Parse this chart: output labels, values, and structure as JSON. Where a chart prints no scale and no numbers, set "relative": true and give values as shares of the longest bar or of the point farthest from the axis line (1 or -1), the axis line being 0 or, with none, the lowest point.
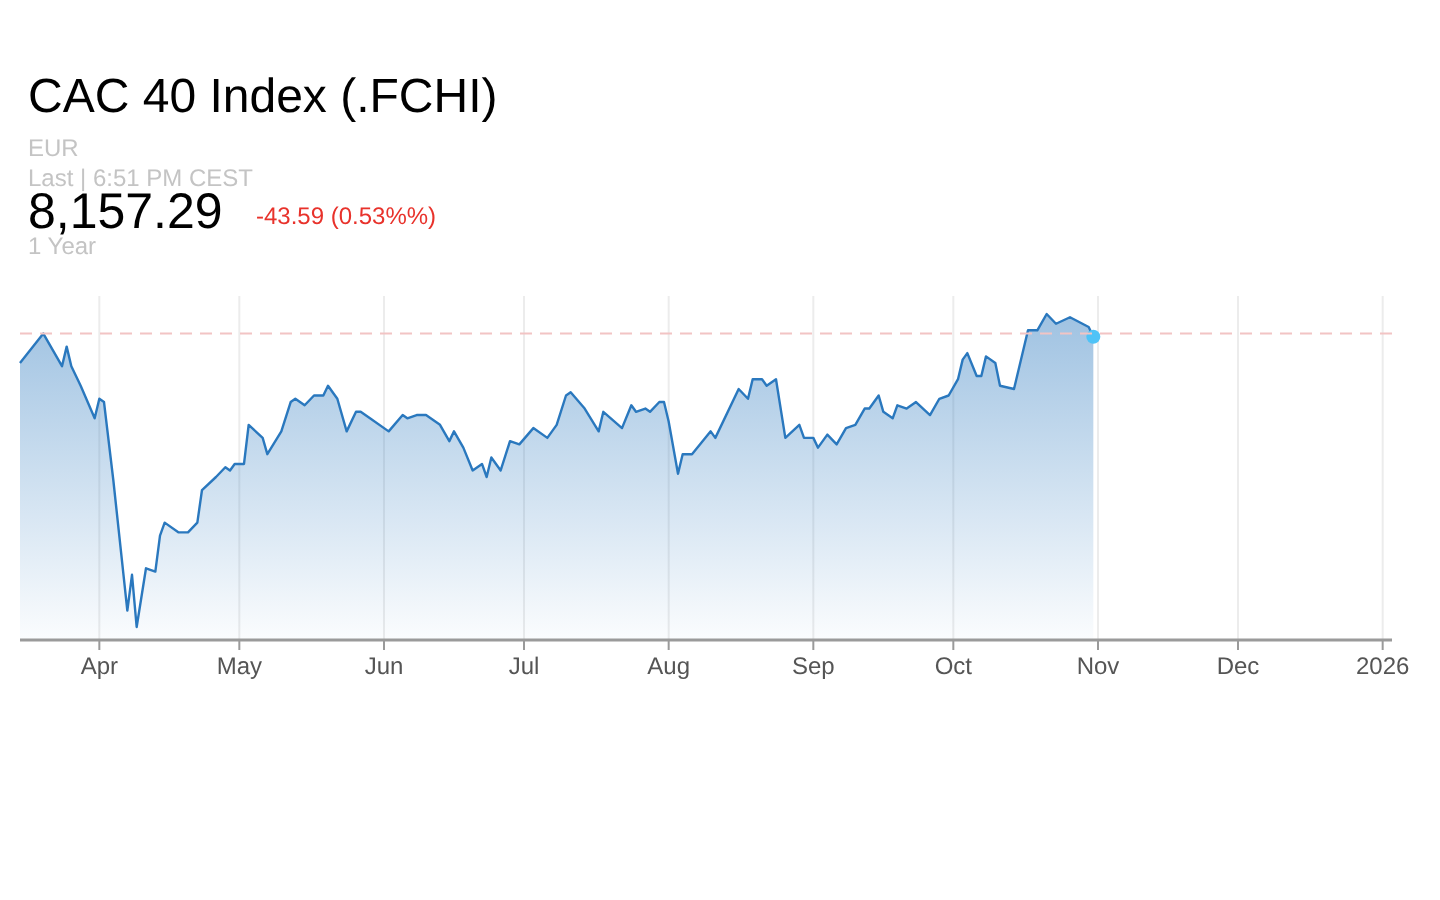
{
  "chart_data": {
    "type": "area",
    "title": "CAC 40 Index (.FCHI)",
    "annotations": [
      "EUR",
      "Last | 6:51 PM CEST",
      "8,157.29",
      "-43.59 (0.53%%)",
      "1 Year"
    ],
    "relative": true,
    "grid": "x",
    "xlim": [
      "2025-03-15",
      "2026-01-03"
    ],
    "xticks": [
      {
        "value": "2025-04-01",
        "label": "Apr"
      },
      {
        "value": "2025-05-01",
        "label": "May"
      },
      {
        "value": "2025-06-01",
        "label": "Jun"
      },
      {
        "value": "2025-07-01",
        "label": "Jul"
      },
      {
        "value": "2025-08-01",
        "label": "Aug"
      },
      {
        "value": "2025-09-01",
        "label": "Sep"
      },
      {
        "value": "2025-10-01",
        "label": "Oct"
      },
      {
        "value": "2025-11-01",
        "label": "Nov"
      },
      {
        "value": "2025-12-01",
        "label": "Dec"
      },
      {
        "value": "2026-01-01",
        "label": "2026"
      }
    ],
    "ref_lines": [
      {
        "axis": "y",
        "value": 0.94,
        "label": null,
        "color": "#f2c4c4",
        "line_style": "dashed"
      }
    ],
    "series": [
      {
        "color": "#2a78be",
        "x": [
          "2025-03-15",
          "2025-03-20",
          "2025-03-22",
          "2025-03-24",
          "2025-03-25",
          "2025-03-26",
          "2025-03-28",
          "2025-03-31",
          "2025-04-01",
          "2025-04-02",
          "2025-04-04",
          "2025-04-07",
          "2025-04-08",
          "2025-04-09",
          "2025-04-11",
          "2025-04-13",
          "2025-04-14",
          "2025-04-15",
          "2025-04-18",
          "2025-04-20",
          "2025-04-22",
          "2025-04-23",
          "2025-04-26",
          "2025-04-28",
          "2025-04-29",
          "2025-04-30",
          "2025-05-02",
          "2025-05-03",
          "2025-05-06",
          "2025-05-07",
          "2025-05-10",
          "2025-05-12",
          "2025-05-13",
          "2025-05-15",
          "2025-05-17",
          "2025-05-19",
          "2025-05-20",
          "2025-05-22",
          "2025-05-24",
          "2025-05-26",
          "2025-05-27",
          "2025-05-29",
          "2025-06-02",
          "2025-06-05",
          "2025-06-06",
          "2025-06-08",
          "2025-06-10",
          "2025-06-13",
          "2025-06-15",
          "2025-06-16",
          "2025-06-18",
          "2025-06-20",
          "2025-06-22",
          "2025-06-23",
          "2025-06-24",
          "2025-06-26",
          "2025-06-28",
          "2025-06-30",
          "2025-07-03",
          "2025-07-06",
          "2025-07-08",
          "2025-07-10",
          "2025-07-11",
          "2025-07-14",
          "2025-07-17",
          "2025-07-18",
          "2025-07-22",
          "2025-07-24",
          "2025-07-25",
          "2025-07-27",
          "2025-07-28",
          "2025-07-30",
          "2025-07-31",
          "2025-08-01",
          "2025-08-03",
          "2025-08-04",
          "2025-08-06",
          "2025-08-10",
          "2025-08-11",
          "2025-08-16",
          "2025-08-18",
          "2025-08-19",
          "2025-08-21",
          "2025-08-22",
          "2025-08-24",
          "2025-08-26",
          "2025-08-29",
          "2025-08-30",
          "2025-09-01",
          "2025-09-02",
          "2025-09-04",
          "2025-09-06",
          "2025-09-08",
          "2025-09-10",
          "2025-09-12",
          "2025-09-13",
          "2025-09-15",
          "2025-09-16",
          "2025-09-18",
          "2025-09-19",
          "2025-09-21",
          "2025-09-23",
          "2025-09-26",
          "2025-09-28",
          "2025-09-30",
          "2025-10-02",
          "2025-10-03",
          "2025-10-04",
          "2025-10-06",
          "2025-10-07",
          "2025-10-08",
          "2025-10-10",
          "2025-10-11",
          "2025-10-14",
          "2025-10-17",
          "2025-10-19",
          "2025-10-21",
          "2025-10-23",
          "2025-10-26",
          "2025-10-30",
          "2025-10-31"
        ],
        "values": [
          0.85,
          0.94,
          0.89,
          0.84,
          0.9,
          0.84,
          0.78,
          0.68,
          0.74,
          0.73,
          0.49,
          0.09,
          0.2,
          0.04,
          0.22,
          0.21,
          0.32,
          0.36,
          0.33,
          0.33,
          0.36,
          0.46,
          0.5,
          0.53,
          0.52,
          0.54,
          0.54,
          0.66,
          0.62,
          0.57,
          0.64,
          0.73,
          0.74,
          0.72,
          0.75,
          0.75,
          0.78,
          0.74,
          0.64,
          0.7,
          0.7,
          0.68,
          0.64,
          0.69,
          0.68,
          0.69,
          0.69,
          0.66,
          0.61,
          0.64,
          0.59,
          0.52,
          0.54,
          0.5,
          0.56,
          0.52,
          0.61,
          0.6,
          0.65,
          0.62,
          0.66,
          0.75,
          0.76,
          0.71,
          0.64,
          0.7,
          0.65,
          0.72,
          0.7,
          0.71,
          0.7,
          0.73,
          0.73,
          0.67,
          0.51,
          0.57,
          0.57,
          0.64,
          0.62,
          0.77,
          0.74,
          0.8,
          0.8,
          0.78,
          0.8,
          0.62,
          0.66,
          0.62,
          0.62,
          0.59,
          0.63,
          0.6,
          0.65,
          0.66,
          0.71,
          0.71,
          0.75,
          0.7,
          0.68,
          0.72,
          0.71,
          0.73,
          0.69,
          0.74,
          0.75,
          0.8,
          0.86,
          0.88,
          0.81,
          0.81,
          0.87,
          0.85,
          0.78,
          0.77,
          0.95,
          0.95,
          1.0,
          0.97,
          0.99,
          0.96,
          0.93
        ]
      },
      {
        "type": "scatter",
        "color": "#4fc3f7",
        "x": [
          "2025-10-31"
        ],
        "values": [
          0.93
        ]
      }
    ]
  }
}
